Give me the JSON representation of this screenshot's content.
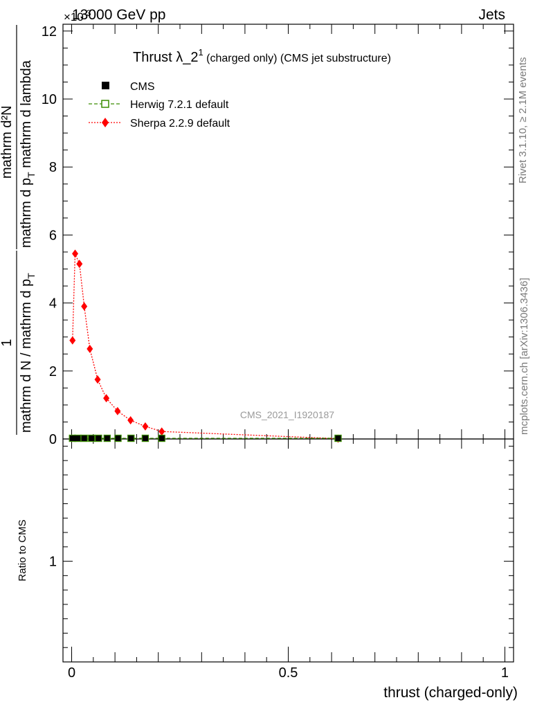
{
  "header": {
    "left": "13000 GeV pp",
    "right": "Jets",
    "exponent": "×10",
    "exponent_power": "-3"
  },
  "title": {
    "main": "Thrust λ_2",
    "sup": "1",
    "sub": " (charged only) (CMS jet substructure)"
  },
  "ylabel_top": "mathrm d N / mathrm d p",
  "y_axis_label": {
    "numerator": "mathrm d²N",
    "denominator": "mathrm d p",
    "denominator_sub": "T",
    "denominator_rest": " mathrm d lambda",
    "prefactor_numerator": "1",
    "prefactor_denominator": "mathrm d N / mathrm d p",
    "prefactor_denominator_sub": "T"
  },
  "ratio_ylabel": "Ratio to CMS",
  "xlabel": "thrust (charged-only)",
  "side_labels": {
    "rivet": "Rivet 3.1.10, ≥ 2.1M events",
    "mcplots": "mcplots.cern.ch [arXiv:1306.3436]"
  },
  "watermark": "CMS_2021_I1920187",
  "legend": [
    {
      "label": "CMS",
      "marker": "square-filled",
      "color": "#000000"
    },
    {
      "label": "Herwig 7.2.1 default",
      "marker": "square-open",
      "color": "#3a8c00"
    },
    {
      "label": "Sherpa 2.2.9 default",
      "marker": "diamond",
      "color": "#ff0000"
    }
  ],
  "chart_data": {
    "type": "line",
    "xlim": [
      -0.02,
      1.02
    ],
    "ylim": [
      0,
      12.2
    ],
    "y_scale_note": "×10^-3",
    "x_ticks": [
      0,
      0.5,
      1
    ],
    "x_tick_labels": [
      "0",
      "0.5",
      "1"
    ],
    "y_ticks": [
      0,
      2,
      4,
      6,
      8,
      10,
      12
    ],
    "y_tick_labels": [
      "0",
      "2",
      "4",
      "6",
      "8",
      "10",
      "12"
    ],
    "ratio_ylim": [
      0.3,
      1.85
    ],
    "ratio_y_ticks": [
      1
    ],
    "ratio_y_tick_labels": [
      "1"
    ],
    "series": [
      {
        "name": "CMS",
        "color": "#000000",
        "x": [
          0.002,
          0.014,
          0.029,
          0.046,
          0.062,
          0.082,
          0.107,
          0.137,
          0.17,
          0.208,
          0.615
        ],
        "y": [
          0,
          0,
          0,
          0,
          0,
          0,
          0,
          0,
          0,
          0,
          0
        ]
      },
      {
        "name": "Herwig 7.2.1 default",
        "color": "#3a8c00",
        "x": [
          0.002,
          0.014,
          0.029,
          0.046,
          0.062,
          0.082,
          0.107,
          0.137,
          0.17,
          0.208,
          0.615
        ],
        "y": [
          0,
          0,
          0,
          0,
          0,
          0,
          0,
          0,
          0,
          0,
          0
        ]
      },
      {
        "name": "Sherpa 2.2.9 default",
        "color": "#ff0000",
        "x": [
          0.002,
          0.008,
          0.018,
          0.029,
          0.042,
          0.06,
          0.08,
          0.106,
          0.136,
          0.17,
          0.208,
          0.615
        ],
        "y": [
          2.9,
          5.45,
          5.15,
          3.9,
          2.65,
          1.75,
          1.2,
          0.82,
          0.55,
          0.37,
          0.22,
          0.01
        ]
      }
    ]
  }
}
